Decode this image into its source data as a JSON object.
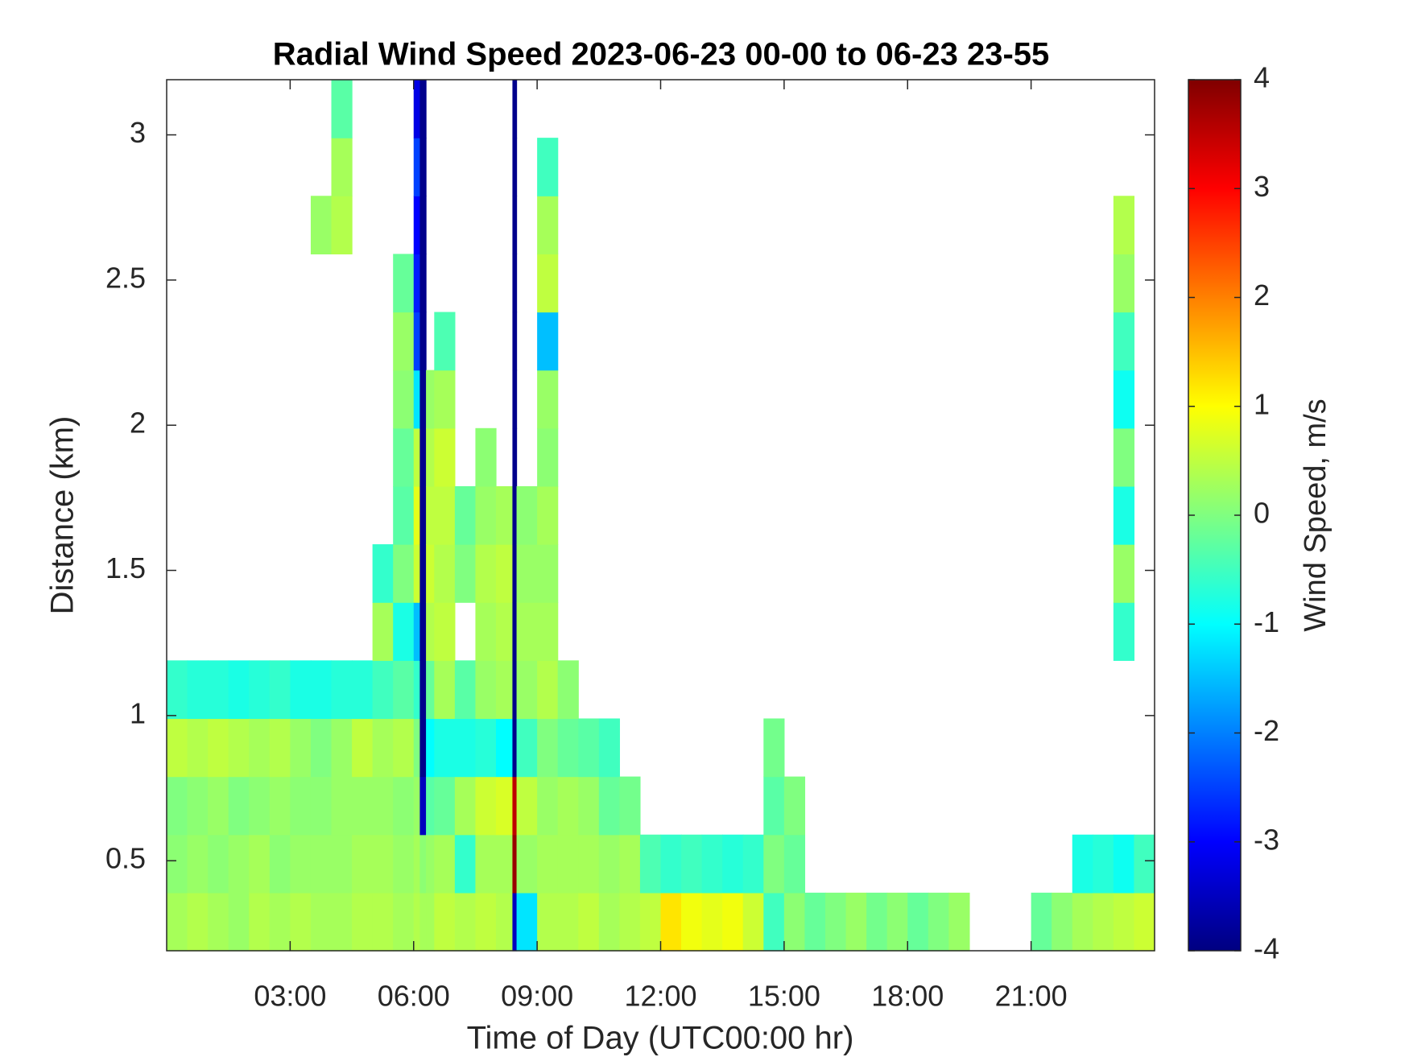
{
  "chart_data": {
    "type": "heatmap",
    "title": "Radial Wind Speed 2023-06-23 00-00 to 06-23 23-55",
    "xlabel": "Time of Day (UTC00:00 hr)",
    "ylabel": "Distance (km)",
    "xlim": [
      0,
      24
    ],
    "ylim": [
      0.19,
      3.19
    ],
    "xticks": [
      {
        "value": 3,
        "label": "03:00"
      },
      {
        "value": 6,
        "label": "06:00"
      },
      {
        "value": 9,
        "label": "09:00"
      },
      {
        "value": 12,
        "label": "12:00"
      },
      {
        "value": 15,
        "label": "15:00"
      },
      {
        "value": 18,
        "label": "18:00"
      },
      {
        "value": 21,
        "label": "21:00"
      }
    ],
    "yticks": [
      0.5,
      1,
      1.5,
      2,
      2.5,
      3
    ],
    "x_bins": [
      0,
      0.5,
      1,
      1.5,
      2,
      2.5,
      3,
      3.5,
      4,
      4.5,
      5,
      5.5,
      6,
      6.15,
      6.3,
      6.5,
      7,
      7.5,
      8,
      8.4,
      8.5,
      9,
      9.5,
      10,
      10.5,
      11,
      11.5,
      12,
      12.5,
      13,
      13.5,
      14,
      14.5,
      15,
      15.5,
      16,
      16.5,
      17,
      17.5,
      18,
      18.5,
      19,
      19.5,
      20,
      20.5,
      21,
      21.5,
      22,
      22.5,
      23,
      23.5,
      24
    ],
    "y_bins": [
      0.19,
      0.39,
      0.59,
      0.79,
      0.99,
      1.19,
      1.39,
      1.59,
      1.79,
      1.99,
      2.19,
      2.39,
      2.59,
      2.79,
      2.99,
      3.19
    ],
    "values": [
      [
        0.3,
        0.1,
        0.0,
        0.5,
        -0.6,
        null,
        null,
        null,
        null,
        null,
        null,
        null,
        null,
        null,
        null
      ],
      [
        0.4,
        0.2,
        0.1,
        0.4,
        -0.7,
        null,
        null,
        null,
        null,
        null,
        null,
        null,
        null,
        null,
        null
      ],
      [
        0.3,
        0.1,
        0.2,
        0.5,
        -0.7,
        null,
        null,
        null,
        null,
        null,
        null,
        null,
        null,
        null,
        null
      ],
      [
        0.2,
        0.2,
        0.0,
        0.4,
        -0.8,
        null,
        null,
        null,
        null,
        null,
        null,
        null,
        null,
        null,
        null
      ],
      [
        0.4,
        0.3,
        0.1,
        0.3,
        -0.7,
        null,
        null,
        null,
        null,
        null,
        null,
        null,
        null,
        null,
        null
      ],
      [
        0.3,
        0.1,
        0.2,
        0.4,
        -0.6,
        null,
        null,
        null,
        null,
        null,
        null,
        null,
        null,
        null,
        null
      ],
      [
        0.4,
        0.2,
        0.1,
        0.2,
        -0.8,
        null,
        null,
        null,
        null,
        null,
        null,
        null,
        null,
        null,
        null
      ],
      [
        0.3,
        0.2,
        0.1,
        0.0,
        -0.8,
        null,
        null,
        null,
        null,
        null,
        null,
        null,
        0.2,
        null,
        null
      ],
      [
        0.3,
        0.2,
        0.2,
        0.2,
        -0.7,
        null,
        null,
        null,
        null,
        null,
        null,
        null,
        0.4,
        0.3,
        -0.3
      ],
      [
        0.4,
        0.3,
        0.2,
        0.5,
        -0.7,
        null,
        null,
        null,
        null,
        null,
        null,
        null,
        null,
        null,
        null
      ],
      [
        0.4,
        0.3,
        0.2,
        0.3,
        -0.5,
        0.3,
        -0.6,
        null,
        null,
        null,
        null,
        null,
        null,
        null,
        null
      ],
      [
        0.3,
        0.2,
        0.1,
        0.4,
        -0.3,
        -0.8,
        0.0,
        -0.3,
        -0.2,
        0.1,
        0.2,
        -0.2,
        null,
        null,
        null
      ],
      [
        0.4,
        0.3,
        0.2,
        0.0,
        -0.6,
        -1.5,
        0.6,
        0.8,
        0.5,
        -1.2,
        -2.5,
        -2.8,
        -3.0,
        -2.5,
        -3.2
      ],
      [
        0.3,
        0.1,
        -3.5,
        -3.9,
        -3.9,
        -3.9,
        -3.9,
        -3.9,
        -3.9,
        -3.9,
        -3.9,
        -3.9,
        -3.9,
        -3.9,
        -3.9
      ],
      [
        0.3,
        0.2,
        -0.3,
        -1.0,
        -0.2,
        0.4,
        0.6,
        0.5,
        0.4,
        0.2,
        null,
        null,
        null,
        null,
        null
      ],
      [
        0.5,
        0.3,
        -0.2,
        -0.8,
        0.3,
        0.5,
        0.4,
        0.5,
        0.6,
        0.3,
        -0.4,
        null,
        null,
        null,
        null
      ],
      [
        0.4,
        -0.6,
        0.3,
        -0.8,
        -0.3,
        null,
        0.0,
        -0.2,
        null,
        null,
        null,
        null,
        null,
        null,
        null
      ],
      [
        0.5,
        0.3,
        0.6,
        -0.7,
        0.2,
        0.3,
        0.4,
        0.2,
        0.1,
        null,
        null,
        null,
        null,
        null,
        null
      ],
      [
        0.4,
        0.3,
        0.7,
        -1.0,
        0.3,
        0.4,
        0.5,
        0.3,
        null,
        null,
        null,
        null,
        null,
        null,
        null
      ],
      [
        -3.5,
        3.8,
        3.5,
        -3.9,
        -3.9,
        -3.9,
        -3.9,
        -3.9,
        -3.9,
        -3.9,
        -3.9,
        -3.9,
        -3.9,
        -3.9,
        -3.9
      ],
      [
        -1.2,
        0.2,
        0.5,
        -0.5,
        0.2,
        0.3,
        0.2,
        0.1,
        null,
        null,
        null,
        null,
        null,
        null,
        null
      ],
      [
        0.4,
        0.3,
        0.2,
        0.0,
        0.4,
        0.3,
        0.2,
        0.3,
        0.1,
        0.2,
        -1.5,
        0.5,
        0.3,
        -0.5,
        null
      ],
      [
        0.4,
        0.3,
        0.3,
        -0.2,
        0.1,
        null,
        null,
        null,
        null,
        null,
        null,
        null,
        null,
        null,
        null
      ],
      [
        0.5,
        0.3,
        0.2,
        -0.3,
        null,
        null,
        null,
        null,
        null,
        null,
        null,
        null,
        null,
        null,
        null
      ],
      [
        0.3,
        0.2,
        -0.2,
        -0.5,
        null,
        null,
        null,
        null,
        null,
        null,
        null,
        null,
        null,
        null,
        null
      ],
      [
        0.4,
        0.3,
        -0.1,
        null,
        null,
        null,
        null,
        null,
        null,
        null,
        null,
        null,
        null,
        null,
        null
      ],
      [
        0.5,
        -0.4,
        null,
        null,
        null,
        null,
        null,
        null,
        null,
        null,
        null,
        null,
        null,
        null,
        null
      ],
      [
        1.2,
        -0.6,
        null,
        null,
        null,
        null,
        null,
        null,
        null,
        null,
        null,
        null,
        null,
        null,
        null
      ],
      [
        0.9,
        -0.5,
        null,
        null,
        null,
        null,
        null,
        null,
        null,
        null,
        null,
        null,
        null,
        null,
        null
      ],
      [
        0.8,
        -0.6,
        null,
        null,
        null,
        null,
        null,
        null,
        null,
        null,
        null,
        null,
        null,
        null,
        null
      ],
      [
        0.9,
        -0.7,
        null,
        null,
        null,
        null,
        null,
        null,
        null,
        null,
        null,
        null,
        null,
        null,
        null
      ],
      [
        0.6,
        -0.6,
        null,
        null,
        null,
        null,
        null,
        null,
        null,
        null,
        null,
        null,
        null,
        null,
        null
      ],
      [
        -0.5,
        0.0,
        -0.3,
        -0.1,
        null,
        null,
        null,
        null,
        null,
        null,
        null,
        null,
        null,
        null,
        null
      ],
      [
        0.1,
        -0.2,
        0.0,
        null,
        null,
        null,
        null,
        null,
        null,
        null,
        null,
        null,
        null,
        null,
        null
      ],
      [
        -0.2,
        null,
        null,
        null,
        null,
        null,
        null,
        null,
        null,
        null,
        null,
        null,
        null,
        null,
        null
      ],
      [
        0.0,
        null,
        null,
        null,
        null,
        null,
        null,
        null,
        null,
        null,
        null,
        null,
        null,
        null,
        null
      ],
      [
        0.2,
        null,
        null,
        null,
        null,
        null,
        null,
        null,
        null,
        null,
        null,
        null,
        null,
        null,
        null
      ],
      [
        -0.1,
        null,
        null,
        null,
        null,
        null,
        null,
        null,
        null,
        null,
        null,
        null,
        null,
        null,
        null
      ],
      [
        0.1,
        null,
        null,
        null,
        null,
        null,
        null,
        null,
        null,
        null,
        null,
        null,
        null,
        null,
        null
      ],
      [
        -0.2,
        null,
        null,
        null,
        null,
        null,
        null,
        null,
        null,
        null,
        null,
        null,
        null,
        null,
        null
      ],
      [
        0.0,
        null,
        null,
        null,
        null,
        null,
        null,
        null,
        null,
        null,
        null,
        null,
        null,
        null,
        null
      ],
      [
        0.2,
        null,
        null,
        null,
        null,
        null,
        null,
        null,
        null,
        null,
        null,
        null,
        null,
        null,
        null
      ],
      [
        null,
        null,
        null,
        null,
        null,
        null,
        null,
        null,
        null,
        null,
        null,
        null,
        null,
        null,
        null
      ],
      [
        null,
        null,
        null,
        null,
        null,
        null,
        null,
        null,
        null,
        null,
        null,
        null,
        null,
        null,
        null
      ],
      [
        null,
        null,
        null,
        null,
        null,
        null,
        null,
        null,
        null,
        null,
        null,
        null,
        null,
        null,
        null
      ],
      [
        -0.2,
        null,
        null,
        null,
        null,
        null,
        null,
        null,
        null,
        null,
        null,
        null,
        null,
        null,
        null
      ],
      [
        0.1,
        null,
        null,
        null,
        null,
        null,
        null,
        null,
        null,
        null,
        null,
        null,
        null,
        null,
        null
      ],
      [
        0.3,
        -0.8,
        null,
        null,
        null,
        null,
        null,
        null,
        null,
        null,
        null,
        null,
        null,
        null,
        null
      ],
      [
        0.4,
        -0.7,
        null,
        null,
        null,
        null,
        null,
        null,
        null,
        null,
        null,
        null,
        null,
        null,
        null
      ],
      [
        0.5,
        -0.9,
        null,
        null,
        null,
        -0.6,
        0.2,
        -0.8,
        0.0,
        -0.9,
        -0.5,
        0.2,
        0.4,
        null,
        null
      ],
      [
        0.6,
        -0.5,
        null,
        null,
        null,
        null,
        null,
        null,
        null,
        null,
        null,
        null,
        null,
        null,
        null
      ]
    ],
    "colorbar": {
      "label": "Wind Speed, m/s",
      "colormap": "jet",
      "clim": [
        -4,
        4
      ],
      "ticks": [
        -4,
        -3,
        -2,
        -1,
        0,
        1,
        2,
        3,
        4
      ]
    }
  }
}
